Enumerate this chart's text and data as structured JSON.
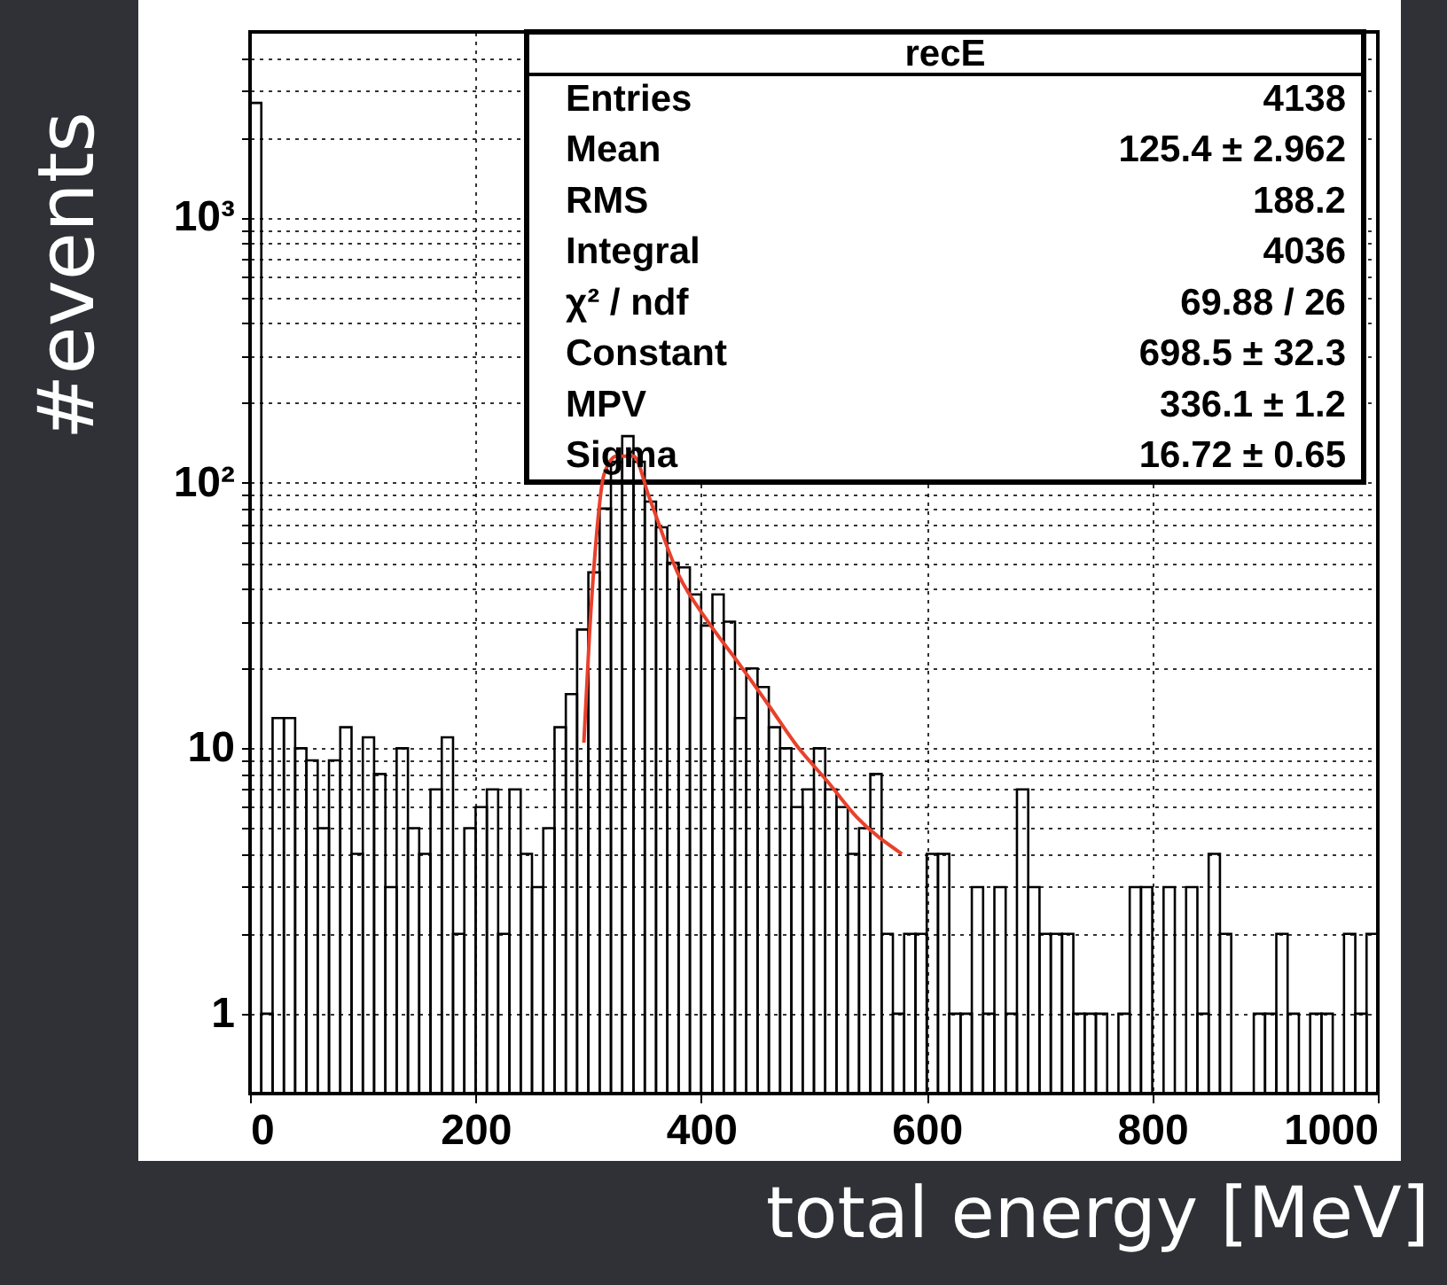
{
  "chart_data": {
    "type": "histogram",
    "title": "recE",
    "xlabel": "total energy [MeV]",
    "ylabel": "#events",
    "bins": [
      0,
      10,
      20,
      30,
      40,
      50,
      60,
      70,
      80,
      90,
      100,
      110,
      120,
      130,
      140,
      150,
      160,
      170,
      180,
      190,
      200,
      210,
      220,
      230,
      240,
      250,
      260,
      270,
      280,
      290,
      300,
      310,
      320,
      330,
      340,
      350,
      360,
      370,
      380,
      390,
      400,
      410,
      420,
      430,
      440,
      450,
      460,
      470,
      480,
      490,
      500,
      510,
      520,
      530,
      540,
      550,
      560,
      570,
      580,
      590,
      600,
      610,
      620,
      630,
      640,
      650,
      660,
      670,
      680,
      690,
      700,
      710,
      720,
      730,
      740,
      750,
      760,
      770,
      780,
      790,
      800,
      810,
      820,
      830,
      840,
      850,
      860,
      870,
      880,
      890,
      900,
      910,
      920,
      930,
      940,
      950,
      960,
      970,
      980,
      990,
      1000
    ],
    "values": [
      2700,
      1,
      13,
      13,
      10,
      9,
      5,
      9,
      12,
      4,
      11,
      8,
      3,
      10,
      5,
      4,
      7,
      11,
      2,
      5,
      6,
      7,
      2,
      7,
      4,
      3,
      5,
      12,
      16,
      28,
      46,
      80,
      120,
      150,
      120,
      85,
      68,
      50,
      48,
      38,
      29,
      38,
      30,
      13,
      20,
      17,
      12,
      10,
      6,
      7,
      10,
      7,
      6,
      4,
      5,
      8,
      2,
      1,
      2,
      2,
      4,
      4,
      1,
      1,
      3,
      1,
      3,
      1,
      7,
      3,
      2,
      2,
      2,
      1,
      1,
      1,
      null,
      1,
      3,
      3,
      null,
      3,
      null,
      3,
      1,
      4,
      2,
      null,
      null,
      1,
      1,
      2,
      1,
      null,
      1,
      1,
      null,
      2,
      1,
      2
    ],
    "color": "#000000",
    "series": [
      {
        "type": "line",
        "color": "#e8412c",
        "x": [
          296,
          301,
          306,
          314,
          325,
          340,
          354,
          380,
          406,
          433,
          459,
          485,
          512,
          538,
          578
        ],
        "values": [
          10.5,
          27,
          55,
          108,
          126,
          126,
          88,
          45,
          30,
          21,
          14.7,
          10.2,
          7.5,
          5.5,
          4.0
        ]
      }
    ],
    "annotations": [
      "Entries",
      "4138",
      "Mean",
      "125.4 ± 2.962",
      "RMS",
      "188.2",
      "Integral",
      "4036",
      "χ² / ndf",
      "69.88 / 26",
      "Constant",
      "698.5 ± 32.3",
      "MPV",
      "336.1 ± 1.2",
      "Sigma",
      "16.72 ± 0.65"
    ],
    "xlim": [
      0,
      1000
    ],
    "xticks": [
      0,
      200,
      400,
      600,
      800,
      1000
    ],
    "ylim": [
      0.5,
      5000
    ],
    "yticks": [
      1,
      {
        "value": 2,
        "label": null
      },
      {
        "value": 3,
        "label": null
      },
      {
        "value": 4,
        "label": null
      },
      {
        "value": 5,
        "label": null
      },
      {
        "value": 6,
        "label": null
      },
      {
        "value": 7,
        "label": null
      },
      {
        "value": 8,
        "label": null
      },
      {
        "value": 9,
        "label": null
      },
      10,
      {
        "value": 20,
        "label": null
      },
      {
        "value": 30,
        "label": null
      },
      {
        "value": 40,
        "label": null
      },
      {
        "value": 50,
        "label": null
      },
      {
        "value": 60,
        "label": null
      },
      {
        "value": 70,
        "label": null
      },
      {
        "value": 80,
        "label": null
      },
      {
        "value": 90,
        "label": null
      },
      {
        "value": 100,
        "label": "10²"
      },
      {
        "value": 200,
        "label": null
      },
      {
        "value": 300,
        "label": null
      },
      {
        "value": 400,
        "label": null
      },
      {
        "value": 500,
        "label": null
      },
      {
        "value": 600,
        "label": null
      },
      {
        "value": 700,
        "label": null
      },
      {
        "value": 800,
        "label": null
      },
      {
        "value": 900,
        "label": null
      },
      {
        "value": 1000,
        "label": "10³"
      },
      {
        "value": 2000,
        "label": null
      },
      {
        "value": 3000,
        "label": null
      },
      {
        "value": 4000,
        "label": null
      }
    ],
    "log": "y",
    "grid": true
  }
}
